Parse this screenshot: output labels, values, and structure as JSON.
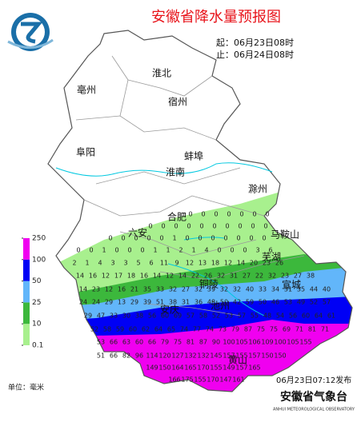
{
  "header": {
    "title": "安徽省降水量预报图",
    "start": "起：06月23日08时",
    "end": "止：06月24日08时"
  },
  "cities": [
    "淮北",
    "亳州",
    "宿州",
    "阜阳",
    "蚌埠",
    "淮南",
    "滁州",
    "合肥",
    "六安",
    "马鞍山",
    "芜湖",
    "铜陵",
    "宣城",
    "安庆",
    "池州",
    "黄山"
  ],
  "legend": {
    "unit": "单位：毫米",
    "levels": [
      {
        "label": "0.1",
        "color": "#a8f08e"
      },
      {
        "label": "10",
        "color": "#3cb83c"
      },
      {
        "label": "25",
        "color": "#62b6fa"
      },
      {
        "label": "50",
        "color": "#0000f5"
      },
      {
        "label": "100",
        "color": "#f000f0"
      },
      {
        "label": "250"
      }
    ]
  },
  "footer": {
    "issued": "06月23日07:12发布",
    "org": "安徽省气象台",
    "org_en": "ANHUI METEOROLOGICAL OBSERVATORY"
  },
  "forecast_rows": [
    [
      0,
      0,
      0,
      0,
      0,
      0,
      0
    ],
    [
      0,
      0,
      0,
      0,
      0,
      0,
      0,
      0,
      0,
      0
    ],
    [
      0,
      0,
      0,
      0,
      0,
      1,
      0,
      0,
      0,
      0,
      0,
      0,
      0
    ],
    [
      0,
      0,
      1,
      0,
      0,
      0,
      1,
      1,
      2,
      1,
      4,
      0,
      0,
      0,
      3,
      6
    ],
    [
      2,
      1,
      4,
      3,
      3,
      5,
      6,
      11,
      9,
      12,
      13,
      18,
      12,
      14,
      20,
      23,
      26
    ],
    [
      14,
      16,
      12,
      17,
      18,
      16,
      14,
      12,
      14,
      22,
      26,
      32,
      31,
      27,
      22,
      32,
      23,
      27,
      38
    ],
    [
      14,
      23,
      12,
      16,
      21,
      35,
      33,
      32,
      27,
      32,
      39,
      32,
      32,
      40,
      33,
      34,
      31,
      35,
      44,
      40
    ],
    [
      24,
      24,
      29,
      13,
      29,
      39,
      51,
      38,
      31,
      36,
      48,
      50,
      42,
      59,
      50,
      46,
      53,
      49,
      52,
      57
    ],
    [
      29,
      47,
      33,
      30,
      38,
      56,
      60,
      69,
      57,
      58,
      52,
      53,
      57,
      55,
      48,
      54,
      56,
      60,
      64,
      61
    ],
    [
      52,
      58,
      59,
      60,
      62,
      64,
      65,
      74,
      77,
      74,
      73,
      79,
      87,
      75,
      75,
      69,
      71,
      81,
      71
    ],
    [
      53,
      66,
      63,
      60,
      66,
      79,
      75,
      81,
      87,
      90,
      100,
      105,
      106,
      109,
      100,
      105,
      155
    ],
    [
      51,
      66,
      82,
      96,
      114,
      120,
      127,
      132,
      132,
      145,
      157,
      155,
      157,
      150,
      150
    ],
    [
      149,
      150,
      164,
      165,
      170,
      155,
      149,
      157,
      165
    ],
    [
      166,
      175,
      155,
      170,
      147,
      161
    ]
  ]
}
